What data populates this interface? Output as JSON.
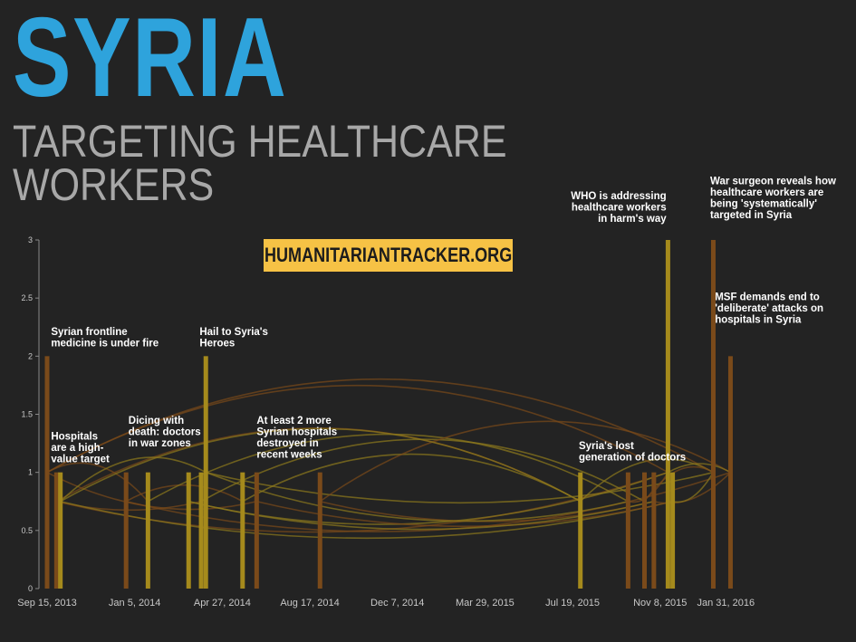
{
  "header": {
    "title": "SYRIA",
    "subtitle_line1": "TARGETING HEALTHCARE",
    "subtitle_line2": "WORKERS",
    "badge": "HUMANITARIANTRACKER.ORG"
  },
  "colors": {
    "background": "#232323",
    "title_blue": "#2ea3dc",
    "subtitle_gray": "#a8a8a8",
    "badge_yellow": "#f6c245",
    "bar_brown": "#7a4a1a",
    "bar_olive": "#a58a1c",
    "arc_brown": "#7a4a1a",
    "arc_olive": "#8f7a1c"
  },
  "chart_data": {
    "type": "bar",
    "title": "Targeting Healthcare Workers",
    "xlabel": "",
    "ylabel": "",
    "ylim": [
      0,
      3
    ],
    "xlim": [
      "2013-09-15",
      "2016-02-24"
    ],
    "y_ticks": [
      "0",
      "0.5",
      "1",
      "1.5",
      "2",
      "2.5",
      "3"
    ],
    "x_ticks": [
      {
        "date": "2013-09-15",
        "label": "Sep 15, 2013"
      },
      {
        "date": "2014-01-05",
        "label": "Jan 5, 2014"
      },
      {
        "date": "2014-04-27",
        "label": "Apr 27, 2014"
      },
      {
        "date": "2014-08-17",
        "label": "Aug 17, 2014"
      },
      {
        "date": "2014-12-07",
        "label": "Dec 7, 2014"
      },
      {
        "date": "2015-03-29",
        "label": "Mar 29, 2015"
      },
      {
        "date": "2015-07-19",
        "label": "Jul 19, 2015"
      },
      {
        "date": "2015-11-08",
        "label": "Nov 8, 2015"
      },
      {
        "date": "2016-01-31",
        "label": "Jan 31, 2016"
      }
    ],
    "bars": [
      {
        "date": "2013-09-15",
        "value": 2,
        "tone": "brown"
      },
      {
        "date": "2013-09-27",
        "value": 1,
        "tone": "brown"
      },
      {
        "date": "2013-10-02",
        "value": 1,
        "tone": "olive"
      },
      {
        "date": "2013-12-25",
        "value": 1,
        "tone": "brown"
      },
      {
        "date": "2014-01-22",
        "value": 1,
        "tone": "olive"
      },
      {
        "date": "2014-03-15",
        "value": 1,
        "tone": "olive"
      },
      {
        "date": "2014-03-31",
        "value": 1,
        "tone": "olive"
      },
      {
        "date": "2014-04-06",
        "value": 2,
        "tone": "olive"
      },
      {
        "date": "2014-05-23",
        "value": 1,
        "tone": "olive"
      },
      {
        "date": "2014-06-10",
        "value": 1,
        "tone": "brown"
      },
      {
        "date": "2014-08-30",
        "value": 1,
        "tone": "brown"
      },
      {
        "date": "2015-07-29",
        "value": 1,
        "tone": "olive"
      },
      {
        "date": "2015-09-28",
        "value": 1,
        "tone": "brown"
      },
      {
        "date": "2015-10-19",
        "value": 1,
        "tone": "brown"
      },
      {
        "date": "2015-10-31",
        "value": 1,
        "tone": "brown"
      },
      {
        "date": "2015-11-18",
        "value": 3,
        "tone": "olive"
      },
      {
        "date": "2015-11-24",
        "value": 1,
        "tone": "olive"
      },
      {
        "date": "2016-01-15",
        "value": 3,
        "tone": "brown"
      },
      {
        "date": "2016-02-06",
        "value": 2,
        "tone": "brown"
      }
    ],
    "annotations": [
      {
        "lines": [
          "Syrian frontline",
          "medicine is under fire"
        ],
        "date": "2013-09-20",
        "value": 2.18
      },
      {
        "lines": [
          "Hospitals",
          "are a high-",
          "value target"
        ],
        "date": "2013-09-20",
        "value": 1.28
      },
      {
        "lines": [
          "Dicing with",
          "death: doctors",
          "in war zones"
        ],
        "date": "2013-12-28",
        "value": 1.42
      },
      {
        "lines": [
          "Hail to Syria's",
          "Heroes"
        ],
        "date": "2014-03-29",
        "value": 2.18
      },
      {
        "lines": [
          "At least 2 more",
          "Syrian hospitals",
          "destroyed in",
          "recent weeks"
        ],
        "date": "2014-06-10",
        "value": 1.42
      },
      {
        "lines": [
          "Syria's lost",
          "generation of doctors"
        ],
        "date": "2015-07-27",
        "value": 1.2
      },
      {
        "lines": [
          "WHO is addressing",
          "healthcare workers",
          "in harm's way"
        ],
        "date": "2015-11-16",
        "value": 3.35,
        "anchor": "end"
      },
      {
        "lines": [
          "War surgeon reveals how",
          "healthcare workers are",
          "being 'systematically'",
          "targeted in Syria"
        ],
        "date": "2016-01-11",
        "value": 3.48
      },
      {
        "lines": [
          "MSF demands end to",
          "'deliberate' attacks on",
          "hospitals in Syria"
        ],
        "date": "2016-01-17",
        "value": 2.48
      }
    ],
    "links": [
      {
        "from": 0,
        "to": 4
      },
      {
        "from": 0,
        "to": 9
      },
      {
        "from": 0,
        "to": 17
      },
      {
        "from": 1,
        "to": 6
      },
      {
        "from": 1,
        "to": 11
      },
      {
        "from": 1,
        "to": 15
      },
      {
        "from": 2,
        "to": 7
      },
      {
        "from": 2,
        "to": 16
      },
      {
        "from": 3,
        "to": 8
      },
      {
        "from": 3,
        "to": 18
      },
      {
        "from": 4,
        "to": 12
      },
      {
        "from": 5,
        "to": 15
      },
      {
        "from": 6,
        "to": 13
      },
      {
        "from": 7,
        "to": 17
      },
      {
        "from": 8,
        "to": 11
      },
      {
        "from": 9,
        "to": 16
      },
      {
        "from": 10,
        "to": 18
      },
      {
        "from": 10,
        "to": 14
      },
      {
        "from": 11,
        "to": 17
      },
      {
        "from": 12,
        "to": 15
      },
      {
        "from": 13,
        "to": 17
      },
      {
        "from": 14,
        "to": 18
      },
      {
        "from": 15,
        "to": 18
      },
      {
        "from": 16,
        "to": 17
      },
      {
        "from": 0,
        "to": 15
      },
      {
        "from": 5,
        "to": 14
      },
      {
        "from": 2,
        "to": 11
      },
      {
        "from": 7,
        "to": 12
      }
    ]
  }
}
